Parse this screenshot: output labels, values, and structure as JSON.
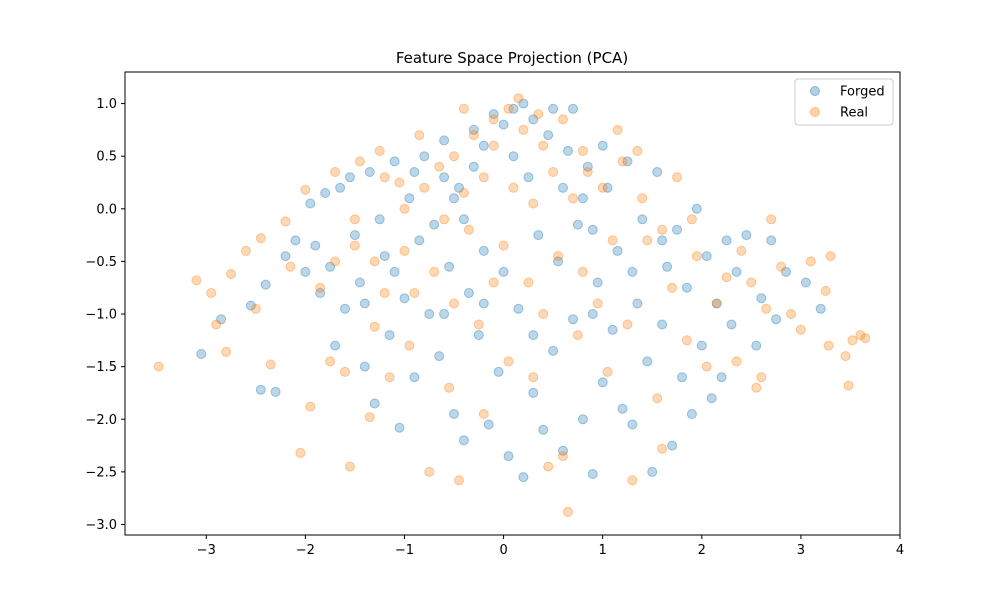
{
  "chart_data": {
    "type": "scatter",
    "title": "Feature Space Projection (PCA)",
    "xlabel": "",
    "ylabel": "",
    "xlim": [
      -3.82,
      4.0
    ],
    "ylim": [
      -3.1,
      1.3
    ],
    "x_ticks": [
      -3,
      -2,
      -1,
      0,
      1,
      2,
      3,
      4
    ],
    "y_ticks": [
      -3.0,
      -2.5,
      -2.0,
      -1.5,
      -1.0,
      -0.5,
      0.0,
      0.5,
      1.0
    ],
    "x_tick_labels": [
      "−3",
      "−2",
      "−1",
      "0",
      "1",
      "2",
      "3",
      "4"
    ],
    "y_tick_labels": [
      "−3.0",
      "−2.5",
      "−2.0",
      "−1.5",
      "−1.0",
      "−0.5",
      "0.0",
      "0.5",
      "1.0"
    ],
    "grid": false,
    "legend_position": "top-right",
    "marker_alpha": 0.3,
    "series": [
      {
        "name": "Forged",
        "color": "#1f77b4",
        "points": [
          [
            -3.05,
            -1.38
          ],
          [
            -2.45,
            -1.72
          ],
          [
            -2.3,
            -1.74
          ],
          [
            -2.85,
            -1.05
          ],
          [
            -2.55,
            -0.92
          ],
          [
            -2.4,
            -0.72
          ],
          [
            -2.2,
            -0.45
          ],
          [
            -2.1,
            -0.3
          ],
          [
            -2.0,
            -0.6
          ],
          [
            -1.95,
            0.05
          ],
          [
            -1.9,
            -0.35
          ],
          [
            -1.85,
            -0.8
          ],
          [
            -1.8,
            0.15
          ],
          [
            -1.75,
            -0.55
          ],
          [
            -1.7,
            -1.3
          ],
          [
            -1.65,
            0.2
          ],
          [
            -1.6,
            -0.95
          ],
          [
            -1.55,
            0.3
          ],
          [
            -1.5,
            -0.25
          ],
          [
            -1.45,
            -0.7
          ],
          [
            -1.4,
            -1.5
          ],
          [
            -1.35,
            0.35
          ],
          [
            -1.3,
            -1.85
          ],
          [
            -1.25,
            -0.1
          ],
          [
            -1.2,
            -0.45
          ],
          [
            -1.15,
            -1.2
          ],
          [
            -1.1,
            0.45
          ],
          [
            -1.05,
            -2.08
          ],
          [
            -1.0,
            -0.85
          ],
          [
            -0.95,
            0.1
          ],
          [
            -0.9,
            -1.6
          ],
          [
            -0.85,
            -0.3
          ],
          [
            -0.8,
            0.5
          ],
          [
            -0.75,
            -1.0
          ],
          [
            -0.7,
            -0.15
          ],
          [
            -0.65,
            -1.4
          ],
          [
            -0.6,
            0.65
          ],
          [
            -0.55,
            -0.55
          ],
          [
            -0.5,
            -1.95
          ],
          [
            -0.45,
            0.2
          ],
          [
            -0.4,
            -2.2
          ],
          [
            -0.35,
            -0.8
          ],
          [
            -0.3,
            0.75
          ],
          [
            -0.25,
            -1.2
          ],
          [
            -0.2,
            -0.4
          ],
          [
            -0.15,
            -2.05
          ],
          [
            -0.1,
            0.9
          ],
          [
            -0.05,
            -1.55
          ],
          [
            0.0,
            -0.6
          ],
          [
            0.05,
            -2.35
          ],
          [
            0.1,
            0.95
          ],
          [
            0.15,
            -0.95
          ],
          [
            0.2,
            -2.55
          ],
          [
            0.25,
            0.3
          ],
          [
            0.3,
            -1.75
          ],
          [
            0.35,
            -0.25
          ],
          [
            0.4,
            -2.1
          ],
          [
            0.45,
            0.7
          ],
          [
            0.5,
            -1.35
          ],
          [
            0.55,
            -0.5
          ],
          [
            0.6,
            -2.3
          ],
          [
            0.65,
            0.55
          ],
          [
            0.7,
            -1.05
          ],
          [
            0.75,
            -0.15
          ],
          [
            0.8,
            -2.0
          ],
          [
            0.85,
            0.4
          ],
          [
            0.9,
            -2.52
          ],
          [
            0.95,
            -0.7
          ],
          [
            1.0,
            -1.65
          ],
          [
            1.05,
            0.2
          ],
          [
            1.1,
            -1.15
          ],
          [
            1.15,
            -0.4
          ],
          [
            1.2,
            -1.9
          ],
          [
            1.25,
            0.45
          ],
          [
            1.3,
            -2.05
          ],
          [
            1.35,
            -0.9
          ],
          [
            1.4,
            -0.1
          ],
          [
            1.45,
            -1.45
          ],
          [
            1.5,
            -2.5
          ],
          [
            1.55,
            0.35
          ],
          [
            1.6,
            -1.1
          ],
          [
            1.65,
            -0.55
          ],
          [
            1.7,
            -2.25
          ],
          [
            1.75,
            -0.2
          ],
          [
            1.8,
            -1.6
          ],
          [
            1.85,
            -0.75
          ],
          [
            1.9,
            -1.95
          ],
          [
            1.95,
            0.0
          ],
          [
            2.0,
            -1.3
          ],
          [
            2.05,
            -0.45
          ],
          [
            2.1,
            -1.8
          ],
          [
            2.15,
            -0.9
          ],
          [
            2.2,
            -1.6
          ],
          [
            2.25,
            -0.3
          ],
          [
            2.3,
            -1.1
          ],
          [
            2.35,
            -0.6
          ],
          [
            2.45,
            -0.25
          ],
          [
            2.55,
            -1.3
          ],
          [
            2.6,
            -0.85
          ],
          [
            2.75,
            -1.05
          ],
          [
            2.85,
            -0.6
          ],
          [
            3.05,
            -0.7
          ],
          [
            3.2,
            -0.95
          ],
          [
            2.7,
            -0.3
          ],
          [
            -0.3,
            0.4
          ],
          [
            -0.2,
            0.6
          ],
          [
            0.0,
            0.8
          ],
          [
            0.1,
            0.5
          ],
          [
            0.2,
            1.0
          ],
          [
            0.3,
            0.85
          ],
          [
            0.5,
            0.95
          ],
          [
            0.7,
            0.95
          ],
          [
            -0.6,
            0.3
          ],
          [
            -0.5,
            0.1
          ],
          [
            -0.4,
            -0.1
          ],
          [
            0.6,
            0.2
          ],
          [
            0.8,
            0.1
          ],
          [
            0.9,
            -0.2
          ],
          [
            1.0,
            0.6
          ],
          [
            -0.9,
            0.35
          ],
          [
            -1.1,
            -0.6
          ],
          [
            -0.2,
            -0.9
          ],
          [
            0.3,
            -1.2
          ],
          [
            -0.6,
            -1.0
          ],
          [
            0.9,
            -1.0
          ],
          [
            1.3,
            -0.6
          ],
          [
            -1.4,
            -0.9
          ],
          [
            1.6,
            -0.3
          ]
        ]
      },
      {
        "name": "Real",
        "color": "#ff7f0e",
        "points": [
          [
            -3.48,
            -1.5
          ],
          [
            -3.1,
            -0.68
          ],
          [
            -2.95,
            -0.8
          ],
          [
            -2.9,
            -1.1
          ],
          [
            -2.8,
            -1.36
          ],
          [
            -2.75,
            -0.62
          ],
          [
            -2.6,
            -0.4
          ],
          [
            -2.5,
            -0.95
          ],
          [
            -2.45,
            -0.28
          ],
          [
            -2.35,
            -1.48
          ],
          [
            -2.2,
            -0.12
          ],
          [
            -2.15,
            -0.55
          ],
          [
            -2.05,
            -2.32
          ],
          [
            -2.0,
            0.18
          ],
          [
            -1.95,
            -1.88
          ],
          [
            -1.85,
            -0.75
          ],
          [
            -1.75,
            -1.45
          ],
          [
            -1.7,
            0.35
          ],
          [
            -1.6,
            -1.55
          ],
          [
            -1.55,
            -2.45
          ],
          [
            -1.5,
            -0.35
          ],
          [
            -1.45,
            0.45
          ],
          [
            -1.35,
            -1.98
          ],
          [
            -1.3,
            -1.12
          ],
          [
            -1.25,
            0.55
          ],
          [
            -1.2,
            -0.8
          ],
          [
            -1.15,
            -1.6
          ],
          [
            -1.05,
            0.25
          ],
          [
            -1.0,
            -0.4
          ],
          [
            -0.95,
            -1.3
          ],
          [
            -0.85,
            0.7
          ],
          [
            -0.75,
            -2.5
          ],
          [
            -0.7,
            -0.6
          ],
          [
            -0.65,
            0.4
          ],
          [
            -0.55,
            -1.7
          ],
          [
            -0.45,
            -2.58
          ],
          [
            -0.4,
            0.95
          ],
          [
            -0.35,
            -0.2
          ],
          [
            -0.25,
            -1.1
          ],
          [
            -0.2,
            -1.95
          ],
          [
            -0.1,
            0.6
          ],
          [
            0.0,
            -0.35
          ],
          [
            0.05,
            -1.45
          ],
          [
            0.15,
            1.05
          ],
          [
            0.25,
            -0.7
          ],
          [
            0.3,
            -1.6
          ],
          [
            0.35,
            0.9
          ],
          [
            0.45,
            -2.45
          ],
          [
            0.55,
            -0.45
          ],
          [
            0.6,
            -2.35
          ],
          [
            0.65,
            -2.88
          ],
          [
            0.75,
            -1.2
          ],
          [
            0.85,
            0.35
          ],
          [
            0.95,
            -0.9
          ],
          [
            1.05,
            -1.55
          ],
          [
            1.15,
            0.75
          ],
          [
            1.25,
            -1.1
          ],
          [
            1.3,
            -2.58
          ],
          [
            1.35,
            0.55
          ],
          [
            1.45,
            -0.3
          ],
          [
            1.55,
            -1.8
          ],
          [
            1.6,
            -2.28
          ],
          [
            1.7,
            -0.75
          ],
          [
            1.75,
            0.3
          ],
          [
            1.85,
            -1.25
          ],
          [
            1.95,
            -0.45
          ],
          [
            2.05,
            -1.5
          ],
          [
            2.15,
            -0.9
          ],
          [
            2.25,
            -0.65
          ],
          [
            2.35,
            -1.45
          ],
          [
            2.4,
            -0.4
          ],
          [
            2.5,
            -0.7
          ],
          [
            2.55,
            -1.7
          ],
          [
            2.65,
            -0.95
          ],
          [
            2.7,
            -0.1
          ],
          [
            2.8,
            -0.55
          ],
          [
            2.9,
            -1.0
          ],
          [
            3.0,
            -1.15
          ],
          [
            3.1,
            -0.5
          ],
          [
            3.25,
            -0.78
          ],
          [
            3.28,
            -1.3
          ],
          [
            3.3,
            -0.45
          ],
          [
            3.45,
            -1.4
          ],
          [
            3.48,
            -1.68
          ],
          [
            3.52,
            -1.25
          ],
          [
            3.6,
            -1.2
          ],
          [
            3.65,
            -1.23
          ],
          [
            2.6,
            -1.6
          ],
          [
            -0.5,
            0.5
          ],
          [
            -0.3,
            0.7
          ],
          [
            -0.1,
            0.85
          ],
          [
            0.05,
            0.95
          ],
          [
            0.2,
            0.75
          ],
          [
            0.4,
            0.6
          ],
          [
            0.6,
            0.85
          ],
          [
            0.8,
            0.55
          ],
          [
            -0.8,
            0.2
          ],
          [
            -0.6,
            -0.1
          ],
          [
            -0.4,
            0.15
          ],
          [
            -0.2,
            0.3
          ],
          [
            0.1,
            0.2
          ],
          [
            0.3,
            0.05
          ],
          [
            0.5,
            0.35
          ],
          [
            0.7,
            0.1
          ],
          [
            1.0,
            0.2
          ],
          [
            1.2,
            0.45
          ],
          [
            -1.0,
            0.0
          ],
          [
            -1.2,
            0.3
          ],
          [
            -1.5,
            -0.1
          ],
          [
            1.4,
            0.1
          ],
          [
            1.6,
            -0.2
          ],
          [
            -0.9,
            -0.8
          ],
          [
            -0.5,
            -0.9
          ],
          [
            -0.1,
            -0.7
          ],
          [
            0.4,
            -1.0
          ],
          [
            0.8,
            -0.6
          ],
          [
            1.1,
            -0.3
          ],
          [
            -1.3,
            -0.5
          ],
          [
            -1.7,
            -0.5
          ],
          [
            1.9,
            -0.1
          ]
        ]
      }
    ]
  }
}
